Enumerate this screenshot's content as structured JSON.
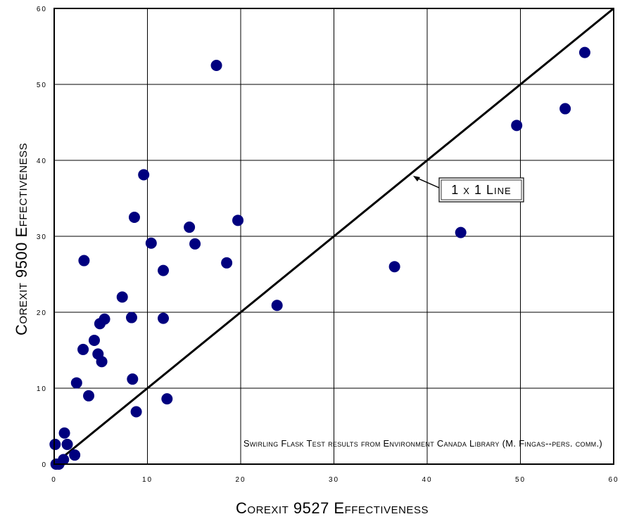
{
  "chart_data": {
    "type": "scatter",
    "xlabel": "Corexit 9527 Effectiveness",
    "ylabel": "Corexit 9500 Effectiveness",
    "xlim": [
      0,
      60
    ],
    "ylim": [
      0,
      60
    ],
    "xticks": [
      "0",
      "10",
      "20",
      "30",
      "40",
      "50",
      "60"
    ],
    "yticks": [
      "0",
      "10",
      "20",
      "30",
      "40",
      "50",
      "60"
    ],
    "grid": true,
    "marker_color": "#00007f",
    "line_color": "#000000",
    "reference_line": {
      "label": "1 x 1 Line",
      "from": [
        0,
        0
      ],
      "to": [
        60,
        60
      ]
    },
    "annotation": "Swirling Flask Test results from Environment Canada Library (M. Fingas--pers. comm.)",
    "points": [
      {
        "x": 0.2,
        "y": 0.0
      },
      {
        "x": 0.5,
        "y": 0.0
      },
      {
        "x": 0.1,
        "y": 2.6
      },
      {
        "x": 1.0,
        "y": 0.6
      },
      {
        "x": 1.1,
        "y": 4.1
      },
      {
        "x": 1.4,
        "y": 2.6
      },
      {
        "x": 2.2,
        "y": 1.2
      },
      {
        "x": 2.4,
        "y": 10.7
      },
      {
        "x": 3.1,
        "y": 15.1
      },
      {
        "x": 3.2,
        "y": 26.8
      },
      {
        "x": 3.7,
        "y": 9.0
      },
      {
        "x": 4.3,
        "y": 16.3
      },
      {
        "x": 4.7,
        "y": 14.5
      },
      {
        "x": 4.9,
        "y": 18.5
      },
      {
        "x": 5.1,
        "y": 13.5
      },
      {
        "x": 5.4,
        "y": 19.1
      },
      {
        "x": 7.3,
        "y": 22.0
      },
      {
        "x": 8.3,
        "y": 19.3
      },
      {
        "x": 8.4,
        "y": 11.2
      },
      {
        "x": 8.6,
        "y": 32.5
      },
      {
        "x": 8.8,
        "y": 6.9
      },
      {
        "x": 9.6,
        "y": 38.1
      },
      {
        "x": 10.4,
        "y": 29.1
      },
      {
        "x": 11.7,
        "y": 25.5
      },
      {
        "x": 11.7,
        "y": 19.2
      },
      {
        "x": 12.1,
        "y": 8.6
      },
      {
        "x": 14.5,
        "y": 31.2
      },
      {
        "x": 15.1,
        "y": 29.0
      },
      {
        "x": 17.4,
        "y": 52.5
      },
      {
        "x": 18.5,
        "y": 26.5
      },
      {
        "x": 19.7,
        "y": 32.1
      },
      {
        "x": 23.9,
        "y": 20.9
      },
      {
        "x": 36.5,
        "y": 26.0
      },
      {
        "x": 43.6,
        "y": 30.5
      },
      {
        "x": 49.6,
        "y": 44.6
      },
      {
        "x": 54.8,
        "y": 46.8
      },
      {
        "x": 56.9,
        "y": 54.2
      }
    ]
  }
}
